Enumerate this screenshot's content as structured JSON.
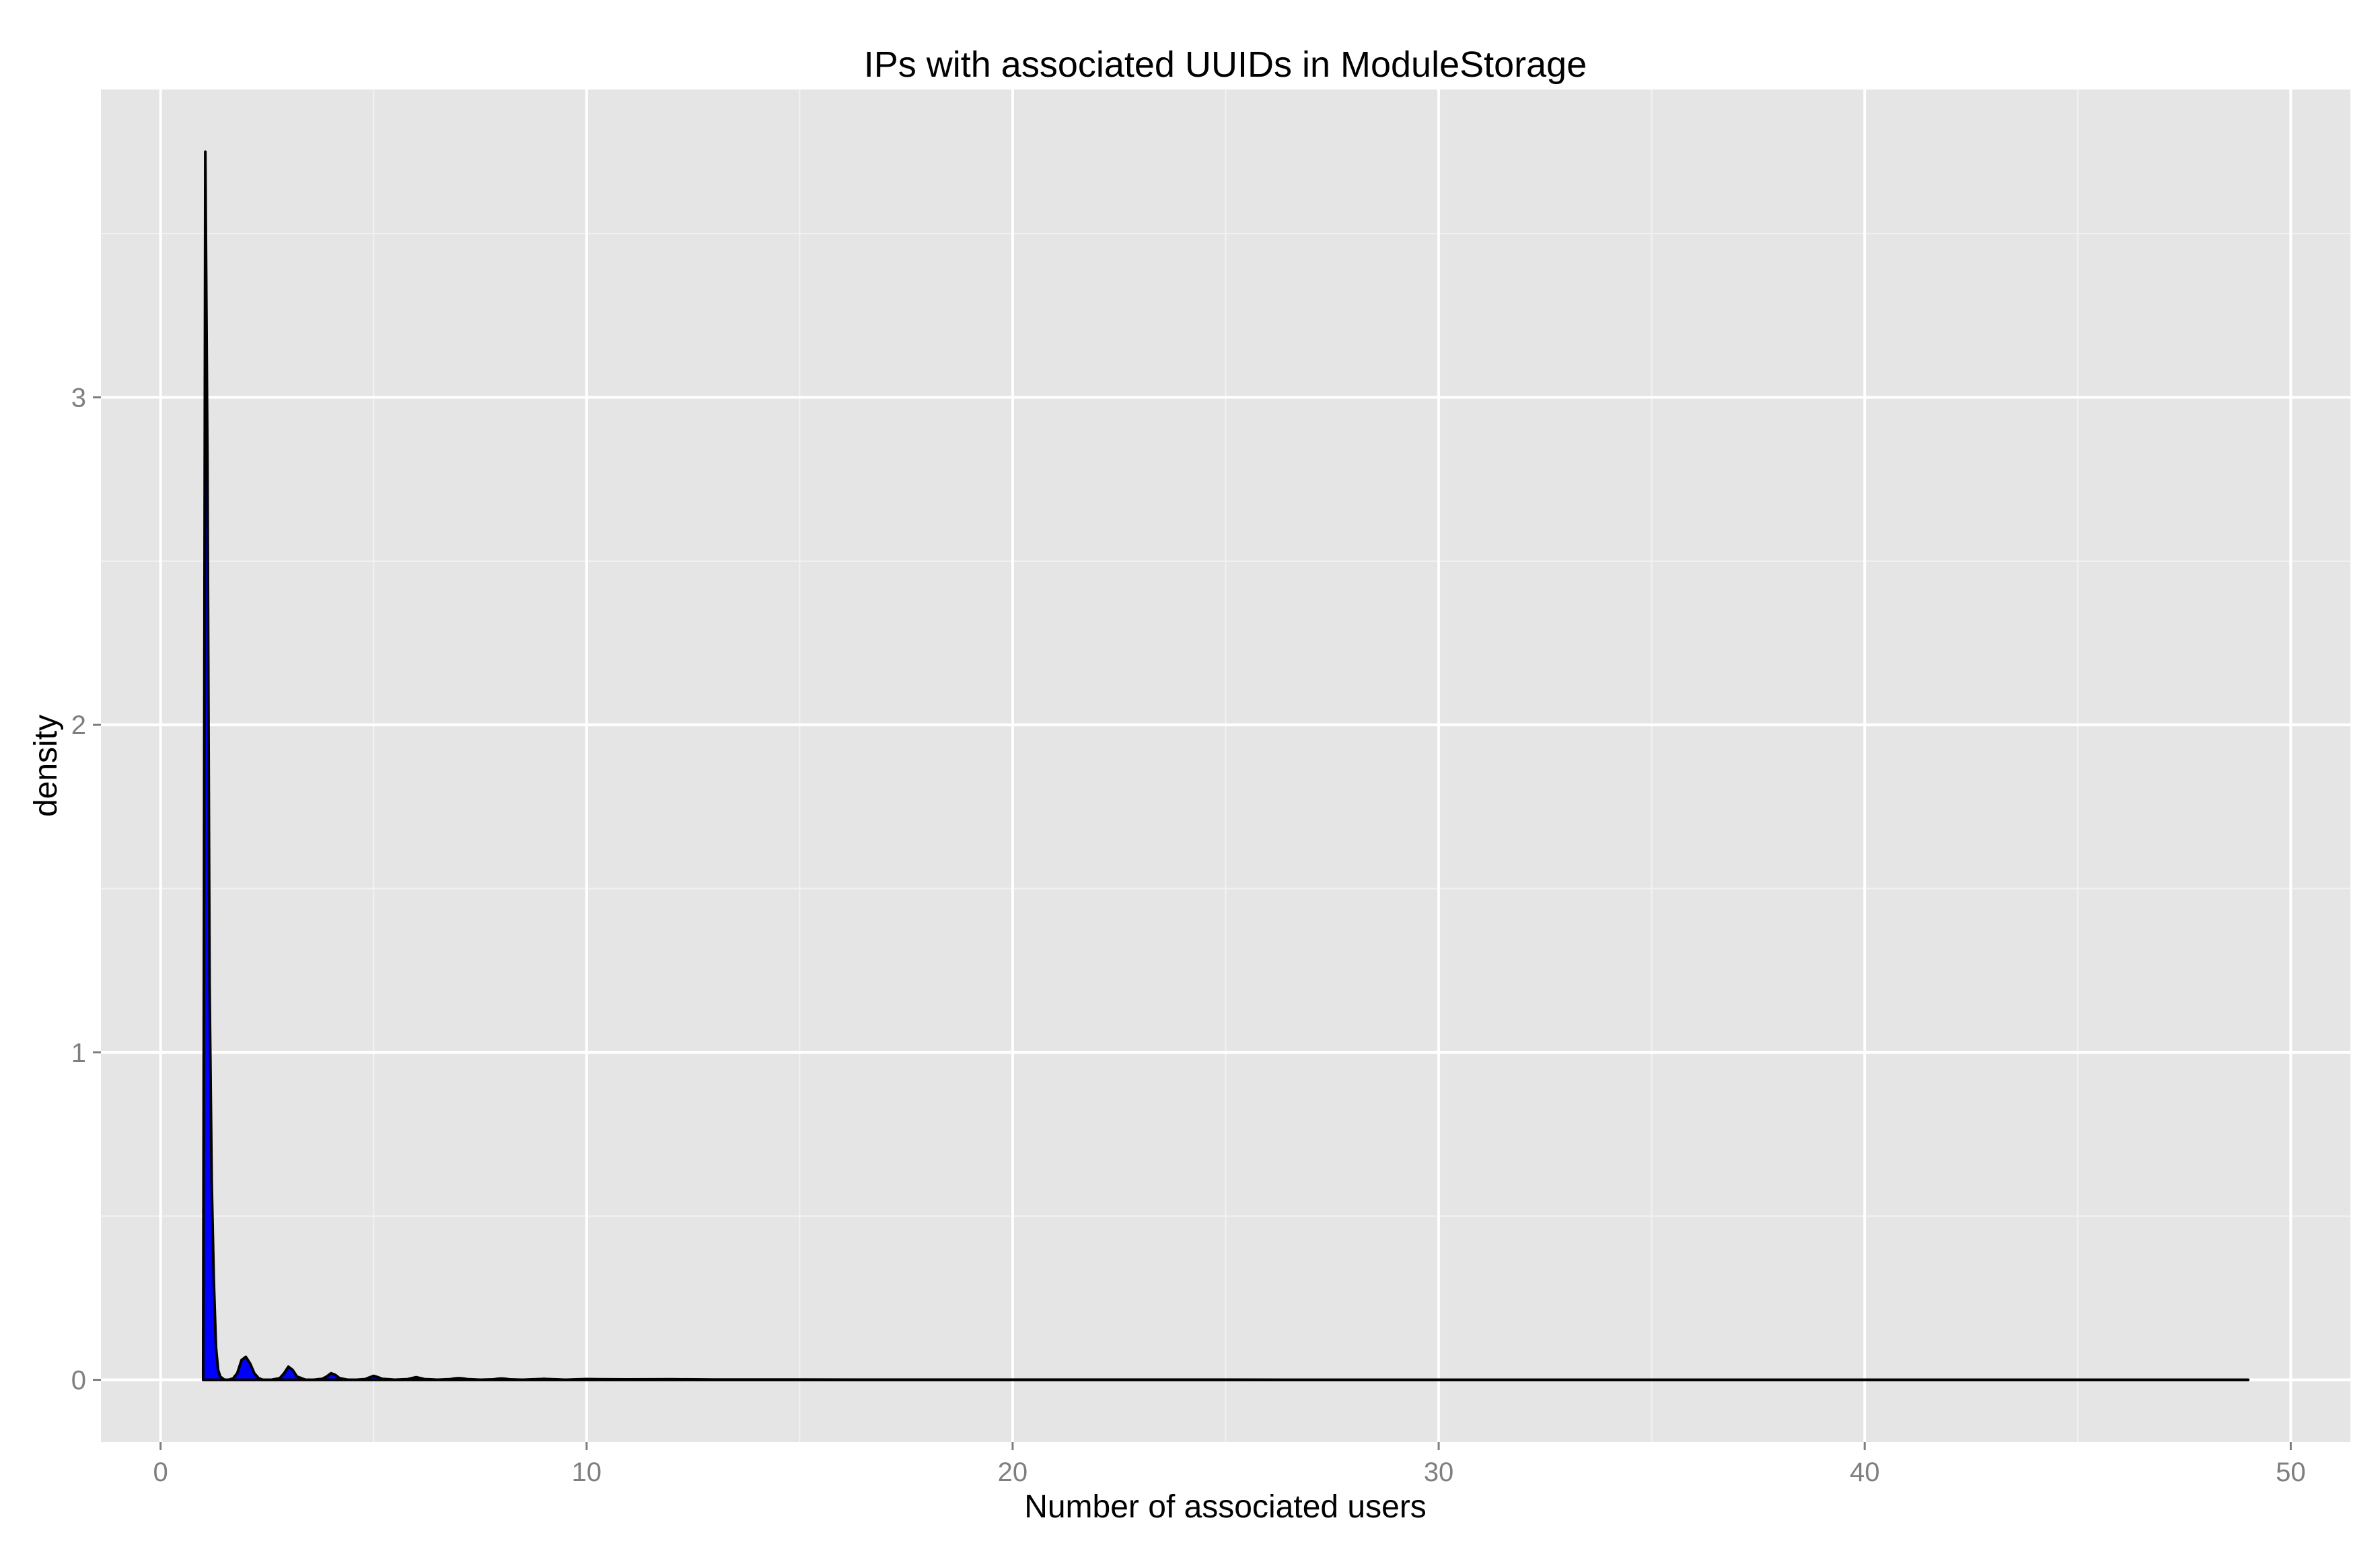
{
  "chart_data": {
    "type": "area",
    "title": "IPs with associated UUIDs in ModuleStorage",
    "xlabel": "Number of associated users",
    "ylabel": "density",
    "xlim": [
      -1.4,
      51.4
    ],
    "ylim": [
      -0.19,
      3.94
    ],
    "x_ticks": [
      0,
      10,
      20,
      30,
      40,
      50
    ],
    "y_ticks": [
      0,
      1,
      2,
      3
    ],
    "grid": true,
    "legend": "none",
    "colors": {
      "panel": "#e5e5e5",
      "grid_major": "#ffffff",
      "grid_minor": "#f2f2f2",
      "fill": "#0000ff",
      "line": "#000000",
      "tick_text": "#7f7f7f",
      "text": "#000000"
    },
    "series": [
      {
        "x": [
          1.0,
          1.05,
          1.1,
          1.15,
          1.2,
          1.25,
          1.3,
          1.35,
          1.4,
          1.5,
          1.6,
          1.7,
          1.8,
          1.9,
          2.0,
          2.1,
          2.2,
          2.3,
          2.4,
          2.6,
          2.8,
          2.9,
          3.0,
          3.1,
          3.2,
          3.4,
          3.6,
          3.8,
          3.9,
          4.0,
          4.1,
          4.2,
          4.4,
          4.6,
          4.8,
          4.9,
          5.0,
          5.1,
          5.2,
          5.5,
          5.8,
          5.9,
          6.0,
          6.1,
          6.2,
          6.5,
          6.8,
          6.9,
          7.0,
          7.1,
          7.2,
          7.5,
          7.8,
          7.9,
          8.0,
          8.1,
          8.2,
          8.5,
          8.9,
          9.0,
          9.1,
          9.5,
          10.0,
          11.0,
          12.0,
          13.0,
          15.0,
          20.0,
          25.0,
          30.0,
          35.0,
          40.0,
          45.0,
          49.0
        ],
        "y": [
          0,
          3.75,
          2.8,
          1.2,
          0.6,
          0.3,
          0.1,
          0.03,
          0.01,
          0.0,
          0.0,
          0.004,
          0.02,
          0.06,
          0.07,
          0.05,
          0.02,
          0.005,
          0.0,
          0.0,
          0.005,
          0.02,
          0.04,
          0.03,
          0.01,
          0.0,
          0.0,
          0.003,
          0.01,
          0.02,
          0.015,
          0.005,
          0.0,
          0.0,
          0.002,
          0.007,
          0.012,
          0.008,
          0.003,
          0.0,
          0.002,
          0.005,
          0.008,
          0.005,
          0.002,
          0.0,
          0.002,
          0.004,
          0.005,
          0.004,
          0.002,
          0.0,
          0.001,
          0.003,
          0.004,
          0.003,
          0.001,
          0.0,
          0.002,
          0.003,
          0.002,
          0.0,
          0.002,
          0.001,
          0.0015,
          0.0005,
          0.0005,
          0.0002,
          0.0002,
          0.0001,
          0.0001,
          0.0001,
          0.0001,
          0
        ]
      }
    ]
  }
}
